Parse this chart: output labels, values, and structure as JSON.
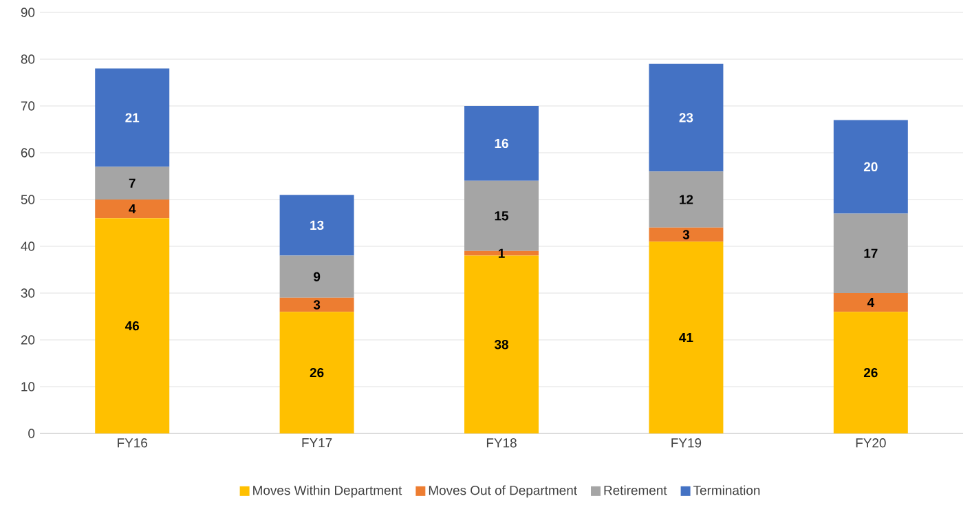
{
  "chart_data": {
    "type": "bar",
    "stacked": true,
    "categories": [
      "FY16",
      "FY17",
      "FY18",
      "FY19",
      "FY20"
    ],
    "series": [
      {
        "name": "Moves Within Department",
        "color": "#ffc000",
        "values": [
          46,
          26,
          38,
          41,
          26
        ]
      },
      {
        "name": "Moves Out of Department",
        "color": "#ed7d31",
        "values": [
          4,
          3,
          1,
          3,
          4
        ]
      },
      {
        "name": "Retirement",
        "color": "#a5a5a5",
        "values": [
          7,
          9,
          15,
          12,
          17
        ]
      },
      {
        "name": "Termination",
        "color": "#4472c4",
        "values": [
          21,
          13,
          16,
          23,
          20
        ]
      }
    ],
    "ylim": [
      0,
      90
    ],
    "yticks": [
      0,
      10,
      20,
      30,
      40,
      50,
      60,
      70,
      80,
      90
    ],
    "grid": "y",
    "legend": "bottom",
    "data_labels": true
  }
}
